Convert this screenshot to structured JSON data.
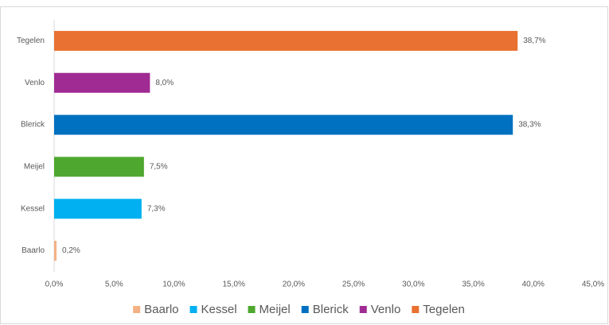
{
  "chart_data": {
    "type": "bar",
    "orientation": "horizontal",
    "categories": [
      "Baarlo",
      "Kessel",
      "Meijel",
      "Blerick",
      "Venlo",
      "Tegelen"
    ],
    "values": [
      0.2,
      7.3,
      7.5,
      38.3,
      8.0,
      38.7
    ],
    "value_labels": [
      "0,2%",
      "7,3%",
      "7,5%",
      "38,3%",
      "8,0%",
      "38,7%"
    ],
    "colors": [
      "#f4b183",
      "#00b0f0",
      "#4ea72e",
      "#0070c0",
      "#a02b93",
      "#e97132"
    ],
    "xlim": [
      0,
      45
    ],
    "xticks": [
      {
        "value": 0,
        "label": "0,0%"
      },
      {
        "value": 5,
        "label": "5,0%"
      },
      {
        "value": 10,
        "label": "10,0%"
      },
      {
        "value": 15,
        "label": "15,0%"
      },
      {
        "value": 20,
        "label": "20,0%"
      },
      {
        "value": 25,
        "label": "25,0%"
      },
      {
        "value": 30,
        "label": "30,0%"
      },
      {
        "value": 35,
        "label": "35,0%"
      },
      {
        "value": 40,
        "label": "40,0%"
      },
      {
        "value": 45,
        "label": "45,0%"
      }
    ],
    "grid": false,
    "legend": "bottom"
  }
}
